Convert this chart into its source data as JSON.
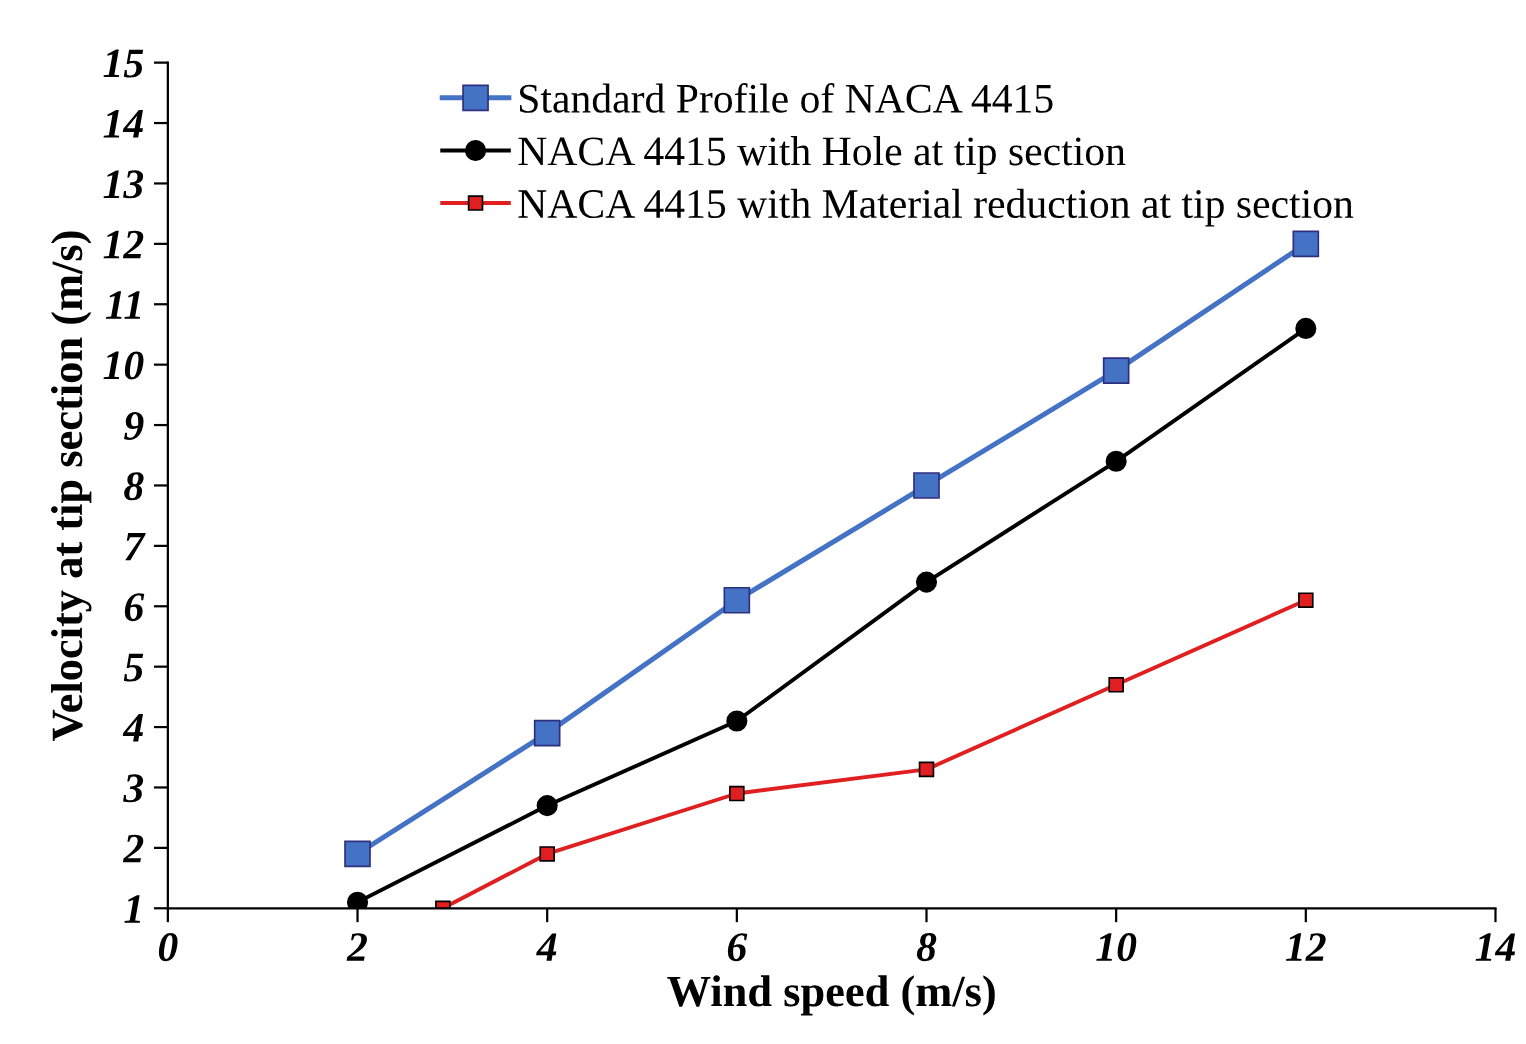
{
  "chart_data": {
    "type": "line",
    "xlabel": "Wind speed (m/s)",
    "ylabel": "Velocity at tip section (m/s)",
    "xlim": [
      0,
      14
    ],
    "xticks": [
      0,
      2,
      4,
      6,
      8,
      10,
      12,
      14
    ],
    "ylim": [
      1,
      15
    ],
    "yticks": [
      1,
      2,
      3,
      4,
      5,
      6,
      7,
      8,
      9,
      10,
      11,
      12,
      13,
      14,
      15
    ],
    "grid": false,
    "legend": "top",
    "line_style": "solid",
    "x": [
      2,
      4,
      6,
      8,
      10,
      12
    ],
    "series": [
      {
        "name": "Standard Profile of NACA 4415",
        "color": "#4472c4",
        "marker": "square",
        "values": [
          1.9,
          3.9,
          6.1,
          8.0,
          9.9,
          12.0
        ]
      },
      {
        "name": "NACA 4415 with Hole at tip section",
        "color": "#000000",
        "marker": "circle",
        "values": [
          1.1,
          2.7,
          4.1,
          6.4,
          8.4,
          10.6
        ]
      },
      {
        "name": "NACA 4415 with Material reduction at tip section",
        "color": "#e02020",
        "marker": "square",
        "x": [
          2.9,
          4,
          6,
          8,
          10,
          12
        ],
        "values": [
          1.0,
          1.9,
          2.9,
          3.3,
          4.7,
          6.1
        ]
      }
    ]
  }
}
